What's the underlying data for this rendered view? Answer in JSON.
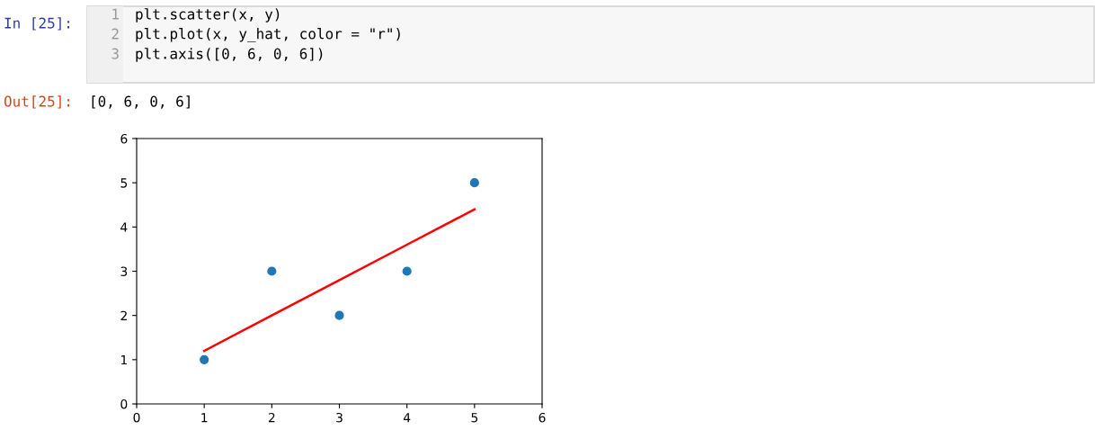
{
  "chart_data": {
    "type": "scatter",
    "series": [
      {
        "color": "#1f77b4",
        "x": [
          1,
          2,
          3,
          4,
          5
        ],
        "values": [
          1,
          3,
          2,
          3,
          5
        ]
      },
      {
        "type": "line",
        "color": "#ff0000",
        "x": [
          1,
          2,
          3,
          4,
          5
        ],
        "values": [
          1.2,
          2.0,
          2.8,
          3.6,
          4.4
        ]
      }
    ],
    "xlim": [
      0,
      6
    ],
    "ylim": [
      0,
      6
    ],
    "xticks": [
      0,
      1,
      2,
      3,
      4,
      5,
      6
    ],
    "yticks": [
      0,
      1,
      2,
      3,
      4,
      5,
      6
    ],
    "grid": false,
    "annotations": [
      "In [25]:",
      "1",
      "plt.scatter(x, y)",
      "2",
      "plt.plot(x, y_hat, color = \"r\")",
      "3",
      "plt.axis([0, 6, 0, 6])",
      "Out[25]:",
      "[0, 6, 0, 6]"
    ]
  }
}
